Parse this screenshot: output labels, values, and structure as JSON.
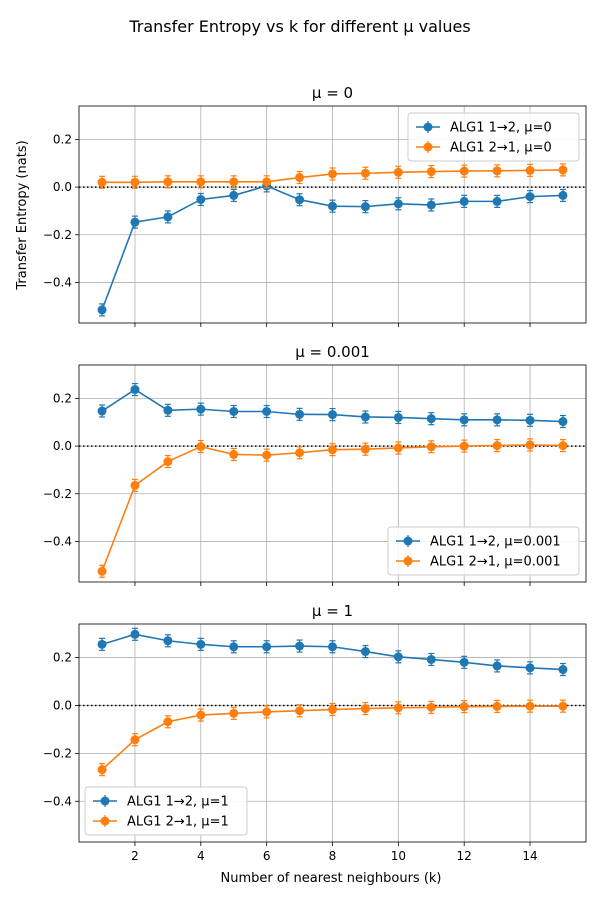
{
  "figure": {
    "suptitle": "Transfer Entropy vs k for different μ values",
    "xlabel": "Number of nearest neighbours (k)",
    "ylabel": "Transfer Entropy (nats)"
  },
  "chart_data": [
    {
      "type": "line",
      "title": "μ = 0",
      "xlabel": "",
      "ylabel": "Transfer Entropy (nats)",
      "xlim": [
        0.3,
        15.7
      ],
      "ylim": [
        -0.57,
        0.34
      ],
      "xticks": [
        2,
        4,
        6,
        8,
        10,
        12,
        14
      ],
      "yticks": [
        -0.4,
        -0.2,
        0.0,
        0.2
      ],
      "ytick_labels": [
        "−0.4",
        "−0.2",
        "0.0",
        "0.2"
      ],
      "grid": true,
      "reference_line": 0,
      "legend_position": "upper right",
      "x": [
        1,
        2,
        3,
        4,
        5,
        6,
        7,
        8,
        9,
        10,
        11,
        12,
        13,
        14,
        15
      ],
      "series": [
        {
          "name": "ALG1 1→2, μ=0",
          "color": "#1f77b4",
          "values": [
            -0.515,
            -0.147,
            -0.125,
            -0.052,
            -0.035,
            0.005,
            -0.053,
            -0.08,
            -0.082,
            -0.07,
            -0.075,
            -0.06,
            -0.06,
            -0.04,
            -0.035
          ]
        },
        {
          "name": "ALG1 2→1, μ=0",
          "color": "#ff7f0e",
          "values": [
            0.02,
            0.02,
            0.022,
            0.022,
            0.022,
            0.022,
            0.04,
            0.055,
            0.058,
            0.062,
            0.065,
            0.067,
            0.068,
            0.07,
            0.072
          ]
        }
      ]
    },
    {
      "type": "line",
      "title": "μ = 0.001",
      "xlabel": "",
      "ylabel": "",
      "xlim": [
        0.3,
        15.7
      ],
      "ylim": [
        -0.57,
        0.34
      ],
      "xticks": [
        2,
        4,
        6,
        8,
        10,
        12,
        14
      ],
      "yticks": [
        -0.4,
        -0.2,
        0.0,
        0.2
      ],
      "ytick_labels": [
        "−0.4",
        "−0.2",
        "0.0",
        "0.2"
      ],
      "grid": true,
      "reference_line": 0,
      "legend_position": "lower right",
      "x": [
        1,
        2,
        3,
        4,
        5,
        6,
        7,
        8,
        9,
        10,
        11,
        12,
        13,
        14,
        15
      ],
      "series": [
        {
          "name": "ALG1 1→2, μ=0.001",
          "color": "#1f77b4",
          "values": [
            0.147,
            0.237,
            0.15,
            0.155,
            0.145,
            0.145,
            0.133,
            0.132,
            0.122,
            0.12,
            0.115,
            0.11,
            0.11,
            0.108,
            0.103
          ]
        },
        {
          "name": "ALG1 2→1, μ=0.001",
          "color": "#ff7f0e",
          "values": [
            -0.525,
            -0.165,
            -0.065,
            -0.002,
            -0.035,
            -0.038,
            -0.028,
            -0.015,
            -0.013,
            -0.008,
            -0.003,
            0.0,
            0.002,
            0.005,
            0.002
          ]
        }
      ]
    },
    {
      "type": "line",
      "title": "μ = 1",
      "xlabel": "Number of nearest neighbours (k)",
      "ylabel": "",
      "xlim": [
        0.3,
        15.7
      ],
      "ylim": [
        -0.57,
        0.34
      ],
      "xticks": [
        2,
        4,
        6,
        8,
        10,
        12,
        14
      ],
      "yticks": [
        -0.4,
        -0.2,
        0.0,
        0.2
      ],
      "ytick_labels": [
        "−0.4",
        "−0.2",
        "0.0",
        "0.2"
      ],
      "grid": true,
      "reference_line": 0,
      "legend_position": "lower left",
      "x": [
        1,
        2,
        3,
        4,
        5,
        6,
        7,
        8,
        9,
        10,
        11,
        12,
        13,
        14,
        15
      ],
      "series": [
        {
          "name": "ALG1 1→2, μ=1",
          "color": "#1f77b4",
          "values": [
            0.255,
            0.297,
            0.27,
            0.255,
            0.245,
            0.245,
            0.248,
            0.245,
            0.225,
            0.203,
            0.192,
            0.18,
            0.165,
            0.157,
            0.15
          ]
        },
        {
          "name": "ALG1 2→1, μ=1",
          "color": "#ff7f0e",
          "values": [
            -0.268,
            -0.143,
            -0.068,
            -0.04,
            -0.033,
            -0.027,
            -0.022,
            -0.017,
            -0.013,
            -0.01,
            -0.008,
            -0.005,
            -0.004,
            -0.003,
            -0.003
          ]
        }
      ]
    }
  ]
}
